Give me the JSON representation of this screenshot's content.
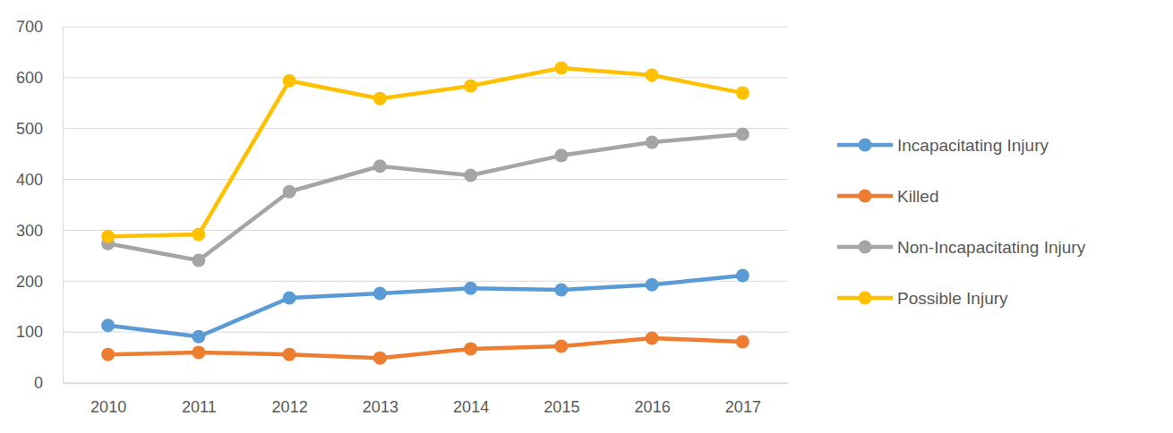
{
  "chart_data": {
    "type": "line",
    "categories": [
      "2010",
      "2011",
      "2012",
      "2013",
      "2014",
      "2015",
      "2016",
      "2017"
    ],
    "series": [
      {
        "name": "Incapacitating Injury",
        "color": "#5b9bd5",
        "values": [
          113,
          91,
          167,
          176,
          186,
          183,
          193,
          211
        ]
      },
      {
        "name": "Killed",
        "color": "#ed7d31",
        "values": [
          56,
          60,
          56,
          49,
          67,
          72,
          88,
          81
        ]
      },
      {
        "name": "Non-Incapacitating Injury",
        "color": "#a5a5a5",
        "values": [
          274,
          241,
          376,
          426,
          408,
          447,
          473,
          489
        ]
      },
      {
        "name": "Possible Injury",
        "color": "#ffc000",
        "values": [
          288,
          292,
          594,
          559,
          584,
          619,
          605,
          570
        ]
      }
    ],
    "ylim": [
      0,
      700
    ],
    "yticks": [
      0,
      100,
      200,
      300,
      400,
      500,
      600,
      700
    ],
    "grid": true,
    "legend": "right",
    "marker": "circle"
  }
}
